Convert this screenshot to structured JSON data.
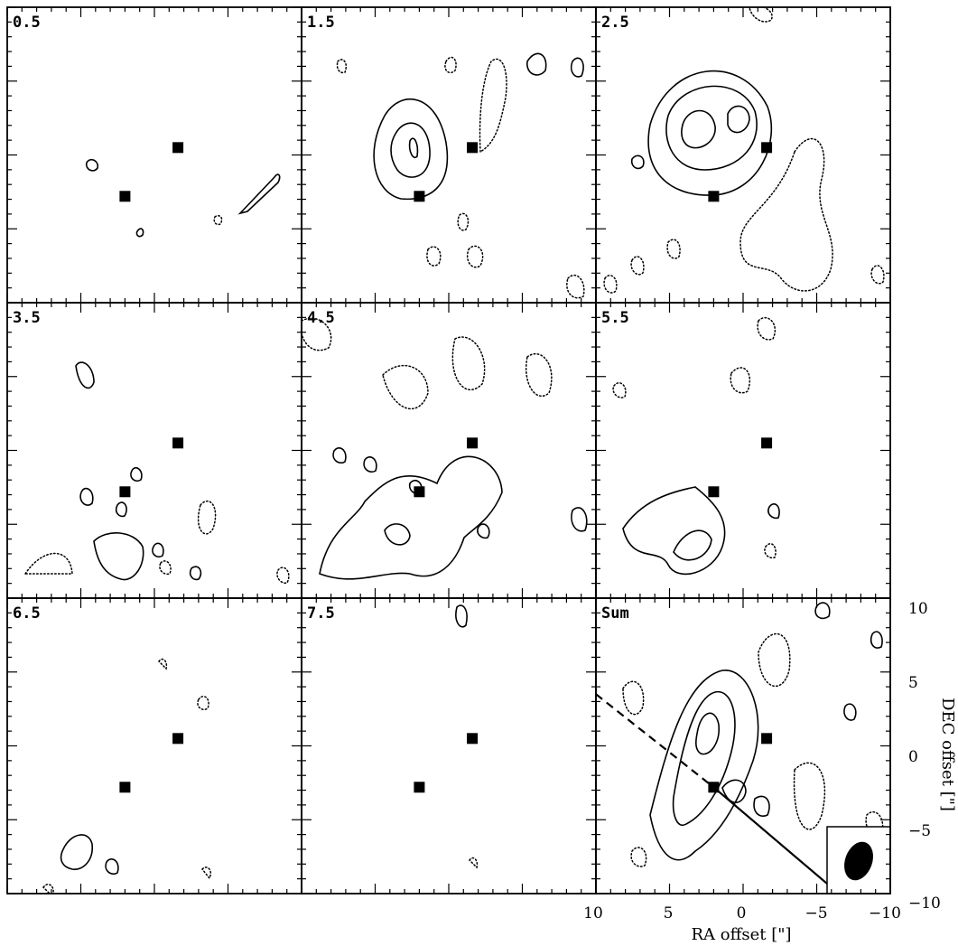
{
  "chart_data": {
    "type": "contour",
    "grid": {
      "rows": 3,
      "cols": 3
    },
    "panels": [
      {
        "label": "0.5"
      },
      {
        "label": "1.5"
      },
      {
        "label": "2.5"
      },
      {
        "label": "3.5"
      },
      {
        "label": "4.5"
      },
      {
        "label": "5.5"
      },
      {
        "label": "6.5"
      },
      {
        "label": "7.5"
      },
      {
        "label": "Sum"
      }
    ],
    "xlabel": "RA offset [\"]",
    "ylabel": "DEC offset [\"]",
    "xlim": [
      10,
      -10
    ],
    "ylim": [
      -10,
      10
    ],
    "x_ticks": [
      "10",
      "5",
      "0",
      "−5",
      "−10"
    ],
    "y_ticks": [
      "10",
      "5",
      "0",
      "−5",
      "−10"
    ],
    "sources": [
      {
        "x": -1.6,
        "y": 0.5
      },
      {
        "x": 2.0,
        "y": -2.8
      }
    ],
    "line_solid": {
      "from": [
        2.0,
        -2.8
      ],
      "to": [
        -6.5,
        -10
      ]
    },
    "line_dashed": {
      "from": [
        10,
        3.5
      ],
      "to": [
        2.0,
        -2.8
      ]
    },
    "beam": "filled ellipse, lower-right inset of Sum panel",
    "contour_styles": {
      "positive": "solid",
      "negative": "dotted"
    }
  }
}
